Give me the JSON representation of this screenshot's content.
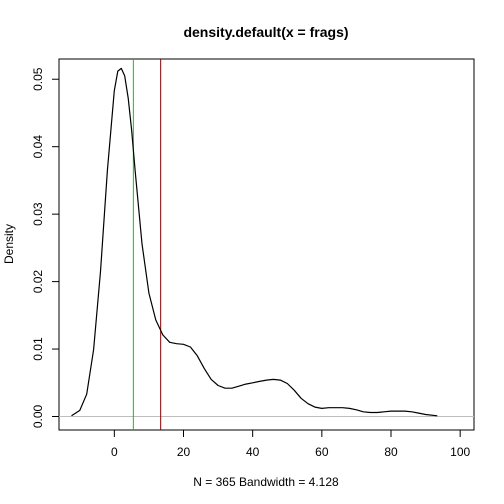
{
  "chart_data": {
    "type": "line",
    "title": "density.default(x = frags)",
    "xlabel": "N = 365   Bandwidth = 4.128",
    "ylabel": "Density",
    "xlim": [
      -16,
      104
    ],
    "ylim": [
      -0.002,
      0.053
    ],
    "x_ticks": [
      0,
      20,
      40,
      60,
      80,
      100
    ],
    "y_ticks": [
      0.0,
      0.01,
      0.02,
      0.03,
      0.04,
      0.05
    ],
    "y_tick_labels": [
      "0.00",
      "0.01",
      "0.02",
      "0.03",
      "0.04",
      "0.05"
    ],
    "series": [
      {
        "color": "#000000",
        "x": [
          -12.4,
          -10,
          -8,
          -6,
          -4,
          -2,
          0,
          1,
          2,
          3,
          4,
          5,
          6,
          8,
          10,
          12,
          14,
          16,
          18,
          20,
          22,
          24,
          26,
          28,
          30,
          32,
          34,
          36,
          38,
          40,
          42,
          44,
          46,
          48,
          50,
          52,
          54,
          56,
          58,
          60,
          62,
          64,
          66,
          68,
          70,
          72,
          74,
          76,
          78,
          80,
          82,
          84,
          86,
          88,
          90,
          93.4
        ],
        "y": [
          0.0001,
          0.0009,
          0.0033,
          0.0099,
          0.0215,
          0.0365,
          0.0483,
          0.0512,
          0.0516,
          0.0505,
          0.0472,
          0.0425,
          0.0365,
          0.0256,
          0.0183,
          0.0143,
          0.0121,
          0.011,
          0.0108,
          0.0107,
          0.0103,
          0.009,
          0.0071,
          0.0055,
          0.0046,
          0.0042,
          0.0042,
          0.0045,
          0.0048,
          0.005,
          0.0052,
          0.0054,
          0.0055,
          0.0054,
          0.0049,
          0.0039,
          0.0027,
          0.0019,
          0.0014,
          0.0012,
          0.0013,
          0.0013,
          0.0013,
          0.0012,
          0.001,
          0.0007,
          0.0006,
          0.0006,
          0.0007,
          0.0008,
          0.0008,
          0.0008,
          0.0007,
          0.0005,
          0.0003,
          0.0001
        ]
      }
    ],
    "baseline": {
      "y": 0,
      "color": "#bebebe"
    },
    "vlines": [
      {
        "x": 5.5,
        "color": "#00cc00"
      },
      {
        "x": 13.4,
        "color": "#8b0000"
      }
    ],
    "grid": false
  }
}
